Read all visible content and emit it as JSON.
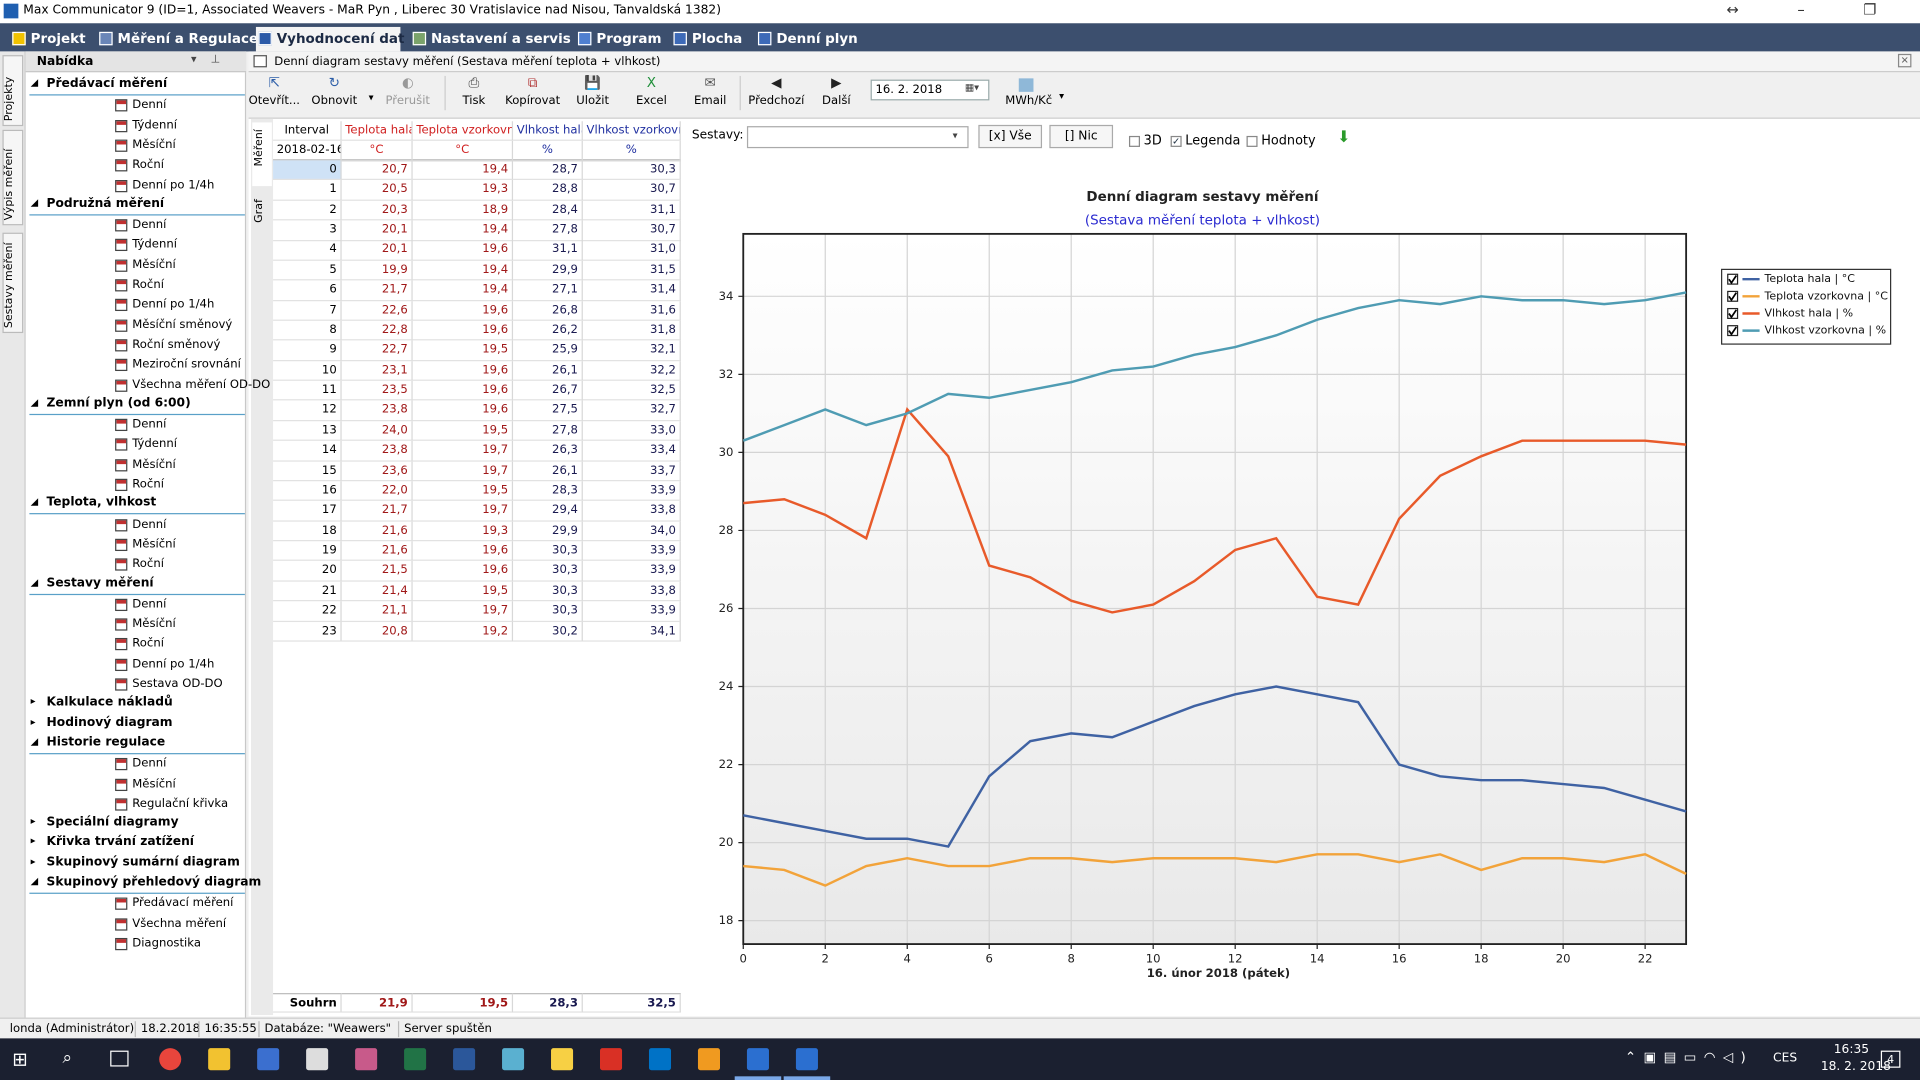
{
  "window": {
    "title": "Max Communicator 9 (ID=1, Associated Weavers - MaR Pyn , Liberec 30 Vratislavice nad Nisou, Tanvaldská 1382)"
  },
  "menu": [
    "Projekt",
    "Měření a Regulace",
    "Vyhodnocení dat",
    "Nastavení a servis",
    "Program",
    "Plocha",
    "Denní plyn"
  ],
  "side_tabs": [
    "Projekty",
    "Výpis měření",
    "Sestavy měření"
  ],
  "sidebar": {
    "title": "Nabídka",
    "groups": [
      {
        "label": "Předávací měření",
        "items": [
          "Denní",
          "Týdenní",
          "Měsíční",
          "Roční",
          "Denní po 1/4h"
        ]
      },
      {
        "label": "Podružná měření",
        "items": [
          "Denní",
          "Týdenní",
          "Měsíční",
          "Roční",
          "Denní po 1/4h",
          "Měsíční směnový",
          "Roční směnový",
          "Meziroční srovnání",
          "Všechna měření OD-DO"
        ]
      },
      {
        "label": "Zemní plyn (od 6:00)",
        "items": [
          "Denní",
          "Týdenní",
          "Měsíční",
          "Roční"
        ]
      },
      {
        "label": "Teplota, vlhkost",
        "items": [
          "Denní",
          "Měsíční",
          "Roční"
        ]
      },
      {
        "label": "Sestavy měření",
        "items": [
          "Denní",
          "Měsíční",
          "Roční",
          "Denní po 1/4h",
          "Sestava OD-DO"
        ]
      },
      {
        "label": "Kalkulace nákladů",
        "items": []
      },
      {
        "label": "Hodinový diagram",
        "items": []
      },
      {
        "label": "Historie regulace",
        "items": [
          "Denní",
          "Měsíční",
          "Regulační křivka"
        ]
      },
      {
        "label": "Speciální diagramy",
        "items": []
      },
      {
        "label": "Křivka trvání zatížení",
        "items": []
      },
      {
        "label": "Skupinový sumární diagram",
        "items": []
      },
      {
        "label": "Skupinový přehledový diagram",
        "items": [
          "Předávací měření",
          "Všechna měření",
          "Diagnostika"
        ]
      }
    ]
  },
  "document": {
    "title": "Denní diagram sestavy měření (Sestava měření teplota + vlhkost)"
  },
  "toolbar": {
    "buttons": [
      "Otevřít...",
      "Obnovit",
      "Přerušit",
      "Tisk",
      "Kopírovat",
      "Uložit",
      "Excel",
      "Email",
      "Předchozí",
      "Další"
    ],
    "date": "16. 2. 2018",
    "unit": "MWh/Kč"
  },
  "view_tabs": [
    "Měření",
    "Graf"
  ],
  "table": {
    "headers": [
      "Interval",
      "Teplota hala",
      "Teplota vzorkovna",
      "Vlhkost hala",
      "Vlhkost vzorkovna"
    ],
    "units": [
      "2018-02-16",
      "°C",
      "°C",
      "%",
      "%"
    ],
    "rows": [
      [
        "0",
        "20,7",
        "19,4",
        "28,7",
        "30,3"
      ],
      [
        "1",
        "20,5",
        "19,3",
        "28,8",
        "30,7"
      ],
      [
        "2",
        "20,3",
        "18,9",
        "28,4",
        "31,1"
      ],
      [
        "3",
        "20,1",
        "19,4",
        "27,8",
        "30,7"
      ],
      [
        "4",
        "20,1",
        "19,6",
        "31,1",
        "31,0"
      ],
      [
        "5",
        "19,9",
        "19,4",
        "29,9",
        "31,5"
      ],
      [
        "6",
        "21,7",
        "19,4",
        "27,1",
        "31,4"
      ],
      [
        "7",
        "22,6",
        "19,6",
        "26,8",
        "31,6"
      ],
      [
        "8",
        "22,8",
        "19,6",
        "26,2",
        "31,8"
      ],
      [
        "9",
        "22,7",
        "19,5",
        "25,9",
        "32,1"
      ],
      [
        "10",
        "23,1",
        "19,6",
        "26,1",
        "32,2"
      ],
      [
        "11",
        "23,5",
        "19,6",
        "26,7",
        "32,5"
      ],
      [
        "12",
        "23,8",
        "19,6",
        "27,5",
        "32,7"
      ],
      [
        "13",
        "24,0",
        "19,5",
        "27,8",
        "33,0"
      ],
      [
        "14",
        "23,8",
        "19,7",
        "26,3",
        "33,4"
      ],
      [
        "15",
        "23,6",
        "19,7",
        "26,1",
        "33,7"
      ],
      [
        "16",
        "22,0",
        "19,5",
        "28,3",
        "33,9"
      ],
      [
        "17",
        "21,7",
        "19,7",
        "29,4",
        "33,8"
      ],
      [
        "18",
        "21,6",
        "19,3",
        "29,9",
        "34,0"
      ],
      [
        "19",
        "21,6",
        "19,6",
        "30,3",
        "33,9"
      ],
      [
        "20",
        "21,5",
        "19,6",
        "30,3",
        "33,9"
      ],
      [
        "21",
        "21,4",
        "19,5",
        "30,3",
        "33,8"
      ],
      [
        "22",
        "21,1",
        "19,7",
        "30,3",
        "33,9"
      ],
      [
        "23",
        "20,8",
        "19,2",
        "30,2",
        "34,1"
      ]
    ],
    "footer": [
      "Souhrn",
      "21,9",
      "19,5",
      "28,3",
      "32,5"
    ]
  },
  "chart_controls": {
    "sets_label": "Sestavy:",
    "all": "[x] Vše",
    "none": "[] Nic",
    "options": [
      "3D",
      "Legenda",
      "Hodnoty"
    ],
    "checked": [
      false,
      true,
      false
    ]
  },
  "chart_data": {
    "type": "line",
    "title": "Denní diagram sestavy měření",
    "subtitle": "(Sestava měření teplota + vlhkost)",
    "x_label": "16. únor 2018 (pátek)",
    "x": [
      0,
      1,
      2,
      3,
      4,
      5,
      6,
      7,
      8,
      9,
      10,
      11,
      12,
      13,
      14,
      15,
      16,
      17,
      18,
      19,
      20,
      21,
      22,
      23
    ],
    "xlim": [
      0,
      23
    ],
    "xticks": [
      0,
      2,
      4,
      6,
      8,
      10,
      12,
      14,
      16,
      18,
      20,
      22
    ],
    "ylim": [
      17.4,
      35.6
    ],
    "yticks": [
      18,
      20,
      22,
      24,
      26,
      28,
      30,
      32,
      34
    ],
    "grid": true,
    "legend": "right",
    "series": [
      {
        "name": "Teplota hala | °C",
        "color": "#3f62a3",
        "values": [
          20.7,
          20.5,
          20.3,
          20.1,
          20.1,
          19.9,
          21.7,
          22.6,
          22.8,
          22.7,
          23.1,
          23.5,
          23.8,
          24.0,
          23.8,
          23.6,
          22.0,
          21.7,
          21.6,
          21.6,
          21.5,
          21.4,
          21.1,
          20.8
        ]
      },
      {
        "name": "Teplota vzorkovna | °C",
        "color": "#f2a33a",
        "values": [
          19.4,
          19.3,
          18.9,
          19.4,
          19.6,
          19.4,
          19.4,
          19.6,
          19.6,
          19.5,
          19.6,
          19.6,
          19.6,
          19.5,
          19.7,
          19.7,
          19.5,
          19.7,
          19.3,
          19.6,
          19.6,
          19.5,
          19.7,
          19.2
        ]
      },
      {
        "name": "Vlhkost hala | %",
        "color": "#e85a2a",
        "values": [
          28.7,
          28.8,
          28.4,
          27.8,
          31.1,
          29.9,
          27.1,
          26.8,
          26.2,
          25.9,
          26.1,
          26.7,
          27.5,
          27.8,
          26.3,
          26.1,
          28.3,
          29.4,
          29.9,
          30.3,
          30.3,
          30.3,
          30.3,
          30.2
        ]
      },
      {
        "name": "Vlhkost vzorkovna | %",
        "color": "#4f9cb3",
        "values": [
          30.3,
          30.7,
          31.1,
          30.7,
          31.0,
          31.5,
          31.4,
          31.6,
          31.8,
          32.1,
          32.2,
          32.5,
          32.7,
          33.0,
          33.4,
          33.7,
          33.9,
          33.8,
          34.0,
          33.9,
          33.9,
          33.8,
          33.9,
          34.1
        ]
      }
    ]
  },
  "status": [
    "londa (Administrátor)",
    "18.2.2018",
    "16:35:55",
    "Databáze: \"Weawers\"",
    "Server spuštěn"
  ],
  "taskbar": {
    "language": "CES",
    "time": "16:35",
    "date": "18. 2. 2018",
    "notifications": "4"
  }
}
